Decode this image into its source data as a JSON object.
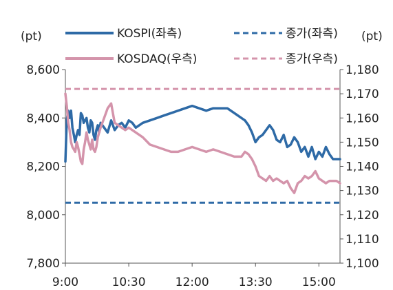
{
  "chart_data": {
    "type": "line",
    "left_unit": "(pt)",
    "right_unit": "(pt)",
    "left_axis": {
      "ylim": [
        7800,
        8600
      ],
      "ticks": [
        "7,800",
        "8,000",
        "8,200",
        "8,400",
        "8,600"
      ]
    },
    "right_axis": {
      "ylim": [
        1100,
        1180
      ],
      "ticks": [
        "1,100",
        "1,110",
        "1,120",
        "1,130",
        "1,140",
        "1,150",
        "1,160",
        "1,170",
        "1,180"
      ]
    },
    "x_ticks": [
      "9:00",
      "10:30",
      "12:00",
      "13:30",
      "15:00"
    ],
    "x_tick_minutes": [
      0,
      90,
      180,
      270,
      360
    ],
    "x_range_minutes": [
      0,
      390
    ],
    "legend": [
      {
        "label": "KOSPI(좌측)",
        "color": "#2e6aa6",
        "style": "solid"
      },
      {
        "label": "종가(좌측)",
        "color": "#2e6aa6",
        "style": "dashed"
      },
      {
        "label": "KOSDAQ(우측)",
        "color": "#d494ab",
        "style": "solid"
      },
      {
        "label": "종가(우측)",
        "color": "#d494ab",
        "style": "dashed"
      }
    ],
    "series": [
      {
        "name": "KOSPI(좌측)",
        "axis": "left",
        "color": "#2e6aa6",
        "x": [
          0,
          2,
          4,
          6,
          8,
          10,
          12,
          14,
          16,
          18,
          20,
          22,
          24,
          26,
          28,
          30,
          32,
          34,
          36,
          38,
          40,
          42,
          44,
          46,
          48,
          50,
          55,
          60,
          65,
          70,
          75,
          80,
          85,
          90,
          95,
          100,
          110,
          120,
          130,
          140,
          150,
          160,
          170,
          180,
          190,
          200,
          210,
          220,
          230,
          240,
          250,
          255,
          260,
          265,
          270,
          275,
          280,
          285,
          290,
          295,
          300,
          305,
          310,
          315,
          320,
          325,
          330,
          335,
          340,
          345,
          350,
          355,
          360,
          365,
          370,
          375,
          380,
          385,
          390
        ],
        "values": [
          8220,
          8390,
          8430,
          8400,
          8430,
          8360,
          8330,
          8300,
          8330,
          8350,
          8330,
          8420,
          8410,
          8380,
          8390,
          8400,
          8360,
          8340,
          8390,
          8380,
          8330,
          8310,
          8350,
          8370,
          8340,
          8380,
          8360,
          8340,
          8390,
          8350,
          8370,
          8380,
          8360,
          8390,
          8380,
          8360,
          8380,
          8390,
          8400,
          8410,
          8420,
          8430,
          8440,
          8450,
          8440,
          8430,
          8440,
          8440,
          8440,
          8420,
          8400,
          8390,
          8370,
          8340,
          8300,
          8320,
          8330,
          8350,
          8370,
          8350,
          8310,
          8300,
          8330,
          8280,
          8290,
          8320,
          8300,
          8260,
          8280,
          8240,
          8280,
          8230,
          8260,
          8240,
          8280,
          8250,
          8230,
          8230,
          8230
        ]
      },
      {
        "name": "KOSDAQ(우측)",
        "axis": "right",
        "color": "#d494ab",
        "x": [
          0,
          2,
          4,
          6,
          8,
          10,
          12,
          14,
          16,
          18,
          20,
          22,
          24,
          26,
          28,
          30,
          32,
          34,
          36,
          38,
          40,
          42,
          44,
          46,
          48,
          50,
          55,
          60,
          65,
          70,
          75,
          80,
          85,
          90,
          95,
          100,
          110,
          120,
          130,
          140,
          150,
          160,
          170,
          180,
          190,
          200,
          210,
          220,
          230,
          240,
          250,
          255,
          260,
          265,
          270,
          275,
          280,
          285,
          290,
          295,
          300,
          305,
          310,
          315,
          320,
          325,
          330,
          335,
          340,
          345,
          350,
          355,
          360,
          365,
          370,
          375,
          380,
          385,
          390
        ],
        "values": [
          1170,
          1165,
          1158,
          1155,
          1150,
          1148,
          1147,
          1146,
          1150,
          1148,
          1145,
          1142,
          1141,
          1147,
          1150,
          1154,
          1151,
          1149,
          1147,
          1151,
          1147,
          1146,
          1148,
          1152,
          1154,
          1156,
          1160,
          1164,
          1166,
          1158,
          1157,
          1156,
          1155,
          1156,
          1155,
          1154,
          1152,
          1149,
          1148,
          1147,
          1146,
          1146,
          1147,
          1148,
          1147,
          1146,
          1147,
          1146,
          1145,
          1144,
          1144,
          1146,
          1145,
          1143,
          1140,
          1136,
          1135,
          1134,
          1136,
          1134,
          1135,
          1134,
          1133,
          1134,
          1131,
          1129,
          1133,
          1134,
          1136,
          1135,
          1136,
          1138,
          1135,
          1134,
          1133,
          1134,
          1134,
          1134,
          1133
        ]
      },
      {
        "name": "종가(좌측)",
        "axis": "left",
        "color": "#2e6aa6",
        "dashed": true,
        "x": [
          0,
          390
        ],
        "values": [
          8050,
          8050
        ]
      },
      {
        "name": "종가(우측)",
        "axis": "right",
        "color": "#d494ab",
        "dashed": true,
        "x": [
          0,
          390
        ],
        "values": [
          1172,
          1172
        ]
      }
    ]
  }
}
